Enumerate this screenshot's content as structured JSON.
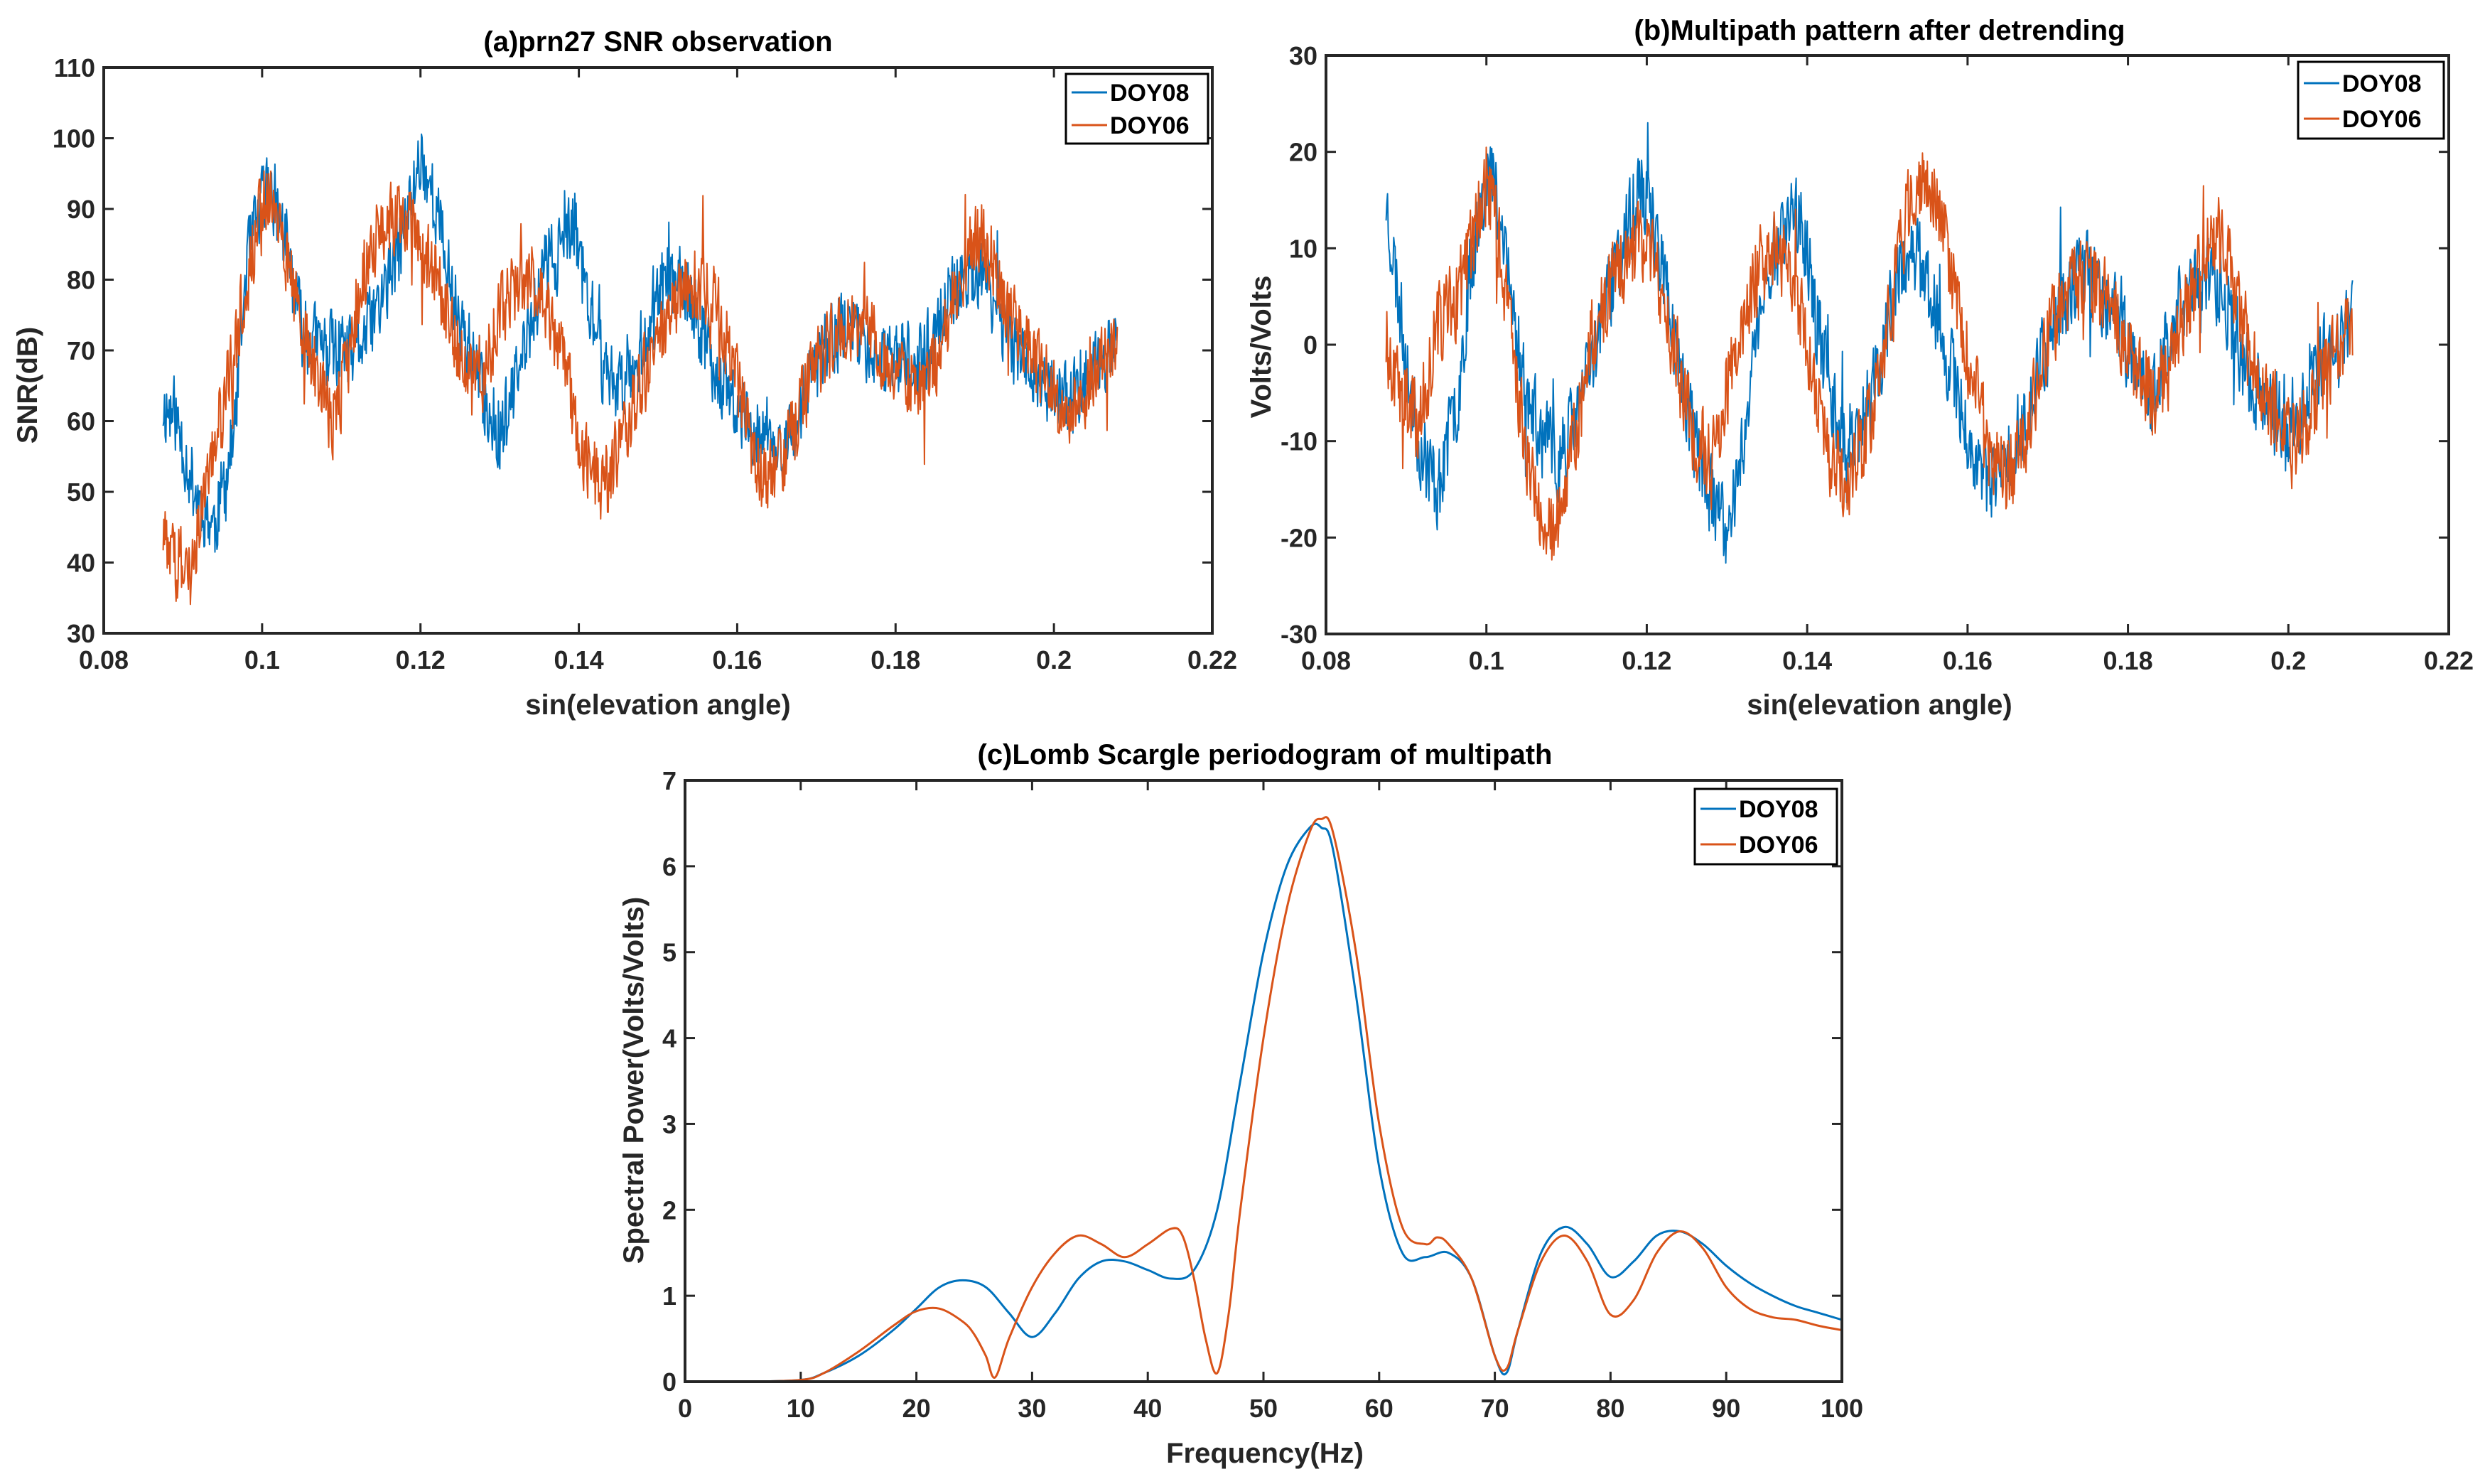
{
  "colors": {
    "DOY08": "#0072BD",
    "DOY06": "#D95319",
    "axis": "#262626"
  },
  "chart_data": [
    {
      "type": "line",
      "title": "(a)prn27 SNR observation",
      "xlabel": "sin(elevation angle)",
      "ylabel": "SNR(dB)",
      "xlim": [
        0.08,
        0.22
      ],
      "ylim": [
        30,
        110
      ],
      "xticks": [
        "0.08",
        "0.1",
        "0.12",
        "0.14",
        "0.16",
        "0.18",
        "0.2",
        "0.22"
      ],
      "yticks": [
        "30",
        "40",
        "50",
        "60",
        "70",
        "80",
        "90",
        "100",
        "110"
      ],
      "legend": [
        "DOY08",
        "DOY06"
      ],
      "legend_position": "top-right",
      "x_range_data": [
        0.0875,
        0.208
      ],
      "series": [
        {
          "name": "DOY08",
          "x": [
            0.0875,
            0.089,
            0.0915,
            0.094,
            0.0965,
            0.098,
            0.1,
            0.101,
            0.103,
            0.105,
            0.107,
            0.109,
            0.111,
            0.113,
            0.115,
            0.117,
            0.119,
            0.12,
            0.122,
            0.124,
            0.126,
            0.128,
            0.13,
            0.132,
            0.134,
            0.136,
            0.138,
            0.1395,
            0.141,
            0.143,
            0.145,
            0.147,
            0.149,
            0.151,
            0.153,
            0.155,
            0.157,
            0.159,
            0.161,
            0.163,
            0.165,
            0.167,
            0.169,
            0.171,
            0.173,
            0.175,
            0.177,
            0.179,
            0.181,
            0.183,
            0.185,
            0.187,
            0.189,
            0.191,
            0.193,
            0.195,
            0.197,
            0.199,
            0.201,
            0.203,
            0.205,
            0.207,
            0.208
          ],
          "values": [
            62,
            61,
            50,
            45,
            58,
            82,
            91,
            94,
            85,
            73,
            71,
            70,
            69,
            72,
            77,
            83,
            92,
            98,
            90,
            78,
            71,
            63,
            58,
            65,
            74,
            83,
            84,
            88,
            78,
            68,
            65,
            68,
            74,
            80,
            79,
            74,
            68,
            63,
            60,
            58,
            56,
            58,
            65,
            70,
            73,
            73,
            70,
            68,
            69,
            68,
            73,
            78,
            80,
            82,
            75,
            70,
            68,
            65,
            62,
            64,
            67,
            70,
            71
          ]
        },
        {
          "name": "DOY06",
          "x": [
            0.0875,
            0.089,
            0.0915,
            0.094,
            0.0965,
            0.098,
            0.1,
            0.101,
            0.103,
            0.105,
            0.107,
            0.109,
            0.111,
            0.113,
            0.115,
            0.117,
            0.119,
            0.12,
            0.122,
            0.124,
            0.126,
            0.128,
            0.13,
            0.132,
            0.134,
            0.136,
            0.138,
            0.1395,
            0.141,
            0.143,
            0.145,
            0.147,
            0.149,
            0.151,
            0.153,
            0.155,
            0.157,
            0.159,
            0.161,
            0.163,
            0.165,
            0.167,
            0.169,
            0.171,
            0.173,
            0.175,
            0.177,
            0.179,
            0.181,
            0.183,
            0.185,
            0.187,
            0.189,
            0.191,
            0.193,
            0.195,
            0.197,
            0.199,
            0.201,
            0.203,
            0.205,
            0.207,
            0.208
          ],
          "values": [
            44,
            40,
            42,
            56,
            70,
            80,
            90,
            93,
            84,
            73,
            66,
            60,
            70,
            82,
            88,
            89,
            88,
            86,
            80,
            73,
            67,
            67,
            75,
            79,
            80,
            76,
            69,
            60,
            54,
            51,
            56,
            62,
            68,
            73,
            78,
            80,
            77,
            70,
            60,
            52,
            52,
            58,
            65,
            70,
            73,
            74,
            72,
            68,
            66,
            65,
            68,
            76,
            83,
            87,
            80,
            74,
            70,
            66,
            62,
            62,
            66,
            70,
            71
          ]
        }
      ]
    },
    {
      "type": "line",
      "title": "(b)Multipath pattern after detrending",
      "xlabel": "sin(elevation angle)",
      "ylabel": "Volts/Volts",
      "xlim": [
        0.08,
        0.22
      ],
      "ylim": [
        -30,
        30
      ],
      "xticks": [
        "0.08",
        "0.1",
        "0.12",
        "0.14",
        "0.16",
        "0.18",
        "0.2",
        "0.22"
      ],
      "yticks": [
        "-30",
        "-20",
        "-10",
        "0",
        "10",
        "20",
        "30"
      ],
      "legend": [
        "DOY08",
        "DOY06"
      ],
      "legend_position": "top-right",
      "x_range_data": [
        0.0875,
        0.208
      ],
      "series": [
        {
          "name": "DOY08",
          "x": [
            0.0875,
            0.089,
            0.0915,
            0.094,
            0.0965,
            0.098,
            0.1,
            0.101,
            0.103,
            0.105,
            0.107,
            0.109,
            0.111,
            0.113,
            0.115,
            0.117,
            0.119,
            0.12,
            0.122,
            0.124,
            0.126,
            0.128,
            0.13,
            0.132,
            0.134,
            0.136,
            0.138,
            0.1395,
            0.141,
            0.143,
            0.145,
            0.147,
            0.149,
            0.151,
            0.153,
            0.155,
            0.157,
            0.159,
            0.161,
            0.163,
            0.165,
            0.167,
            0.169,
            0.171,
            0.173,
            0.175,
            0.177,
            0.179,
            0.181,
            0.183,
            0.185,
            0.187,
            0.189,
            0.191,
            0.193,
            0.195,
            0.197,
            0.199,
            0.201,
            0.203,
            0.205,
            0.207,
            0.208
          ],
          "values": [
            15,
            5,
            -10,
            -15,
            -5,
            8,
            18,
            17,
            5,
            -5,
            -10,
            -12,
            -8,
            -2,
            5,
            10,
            16,
            15,
            8,
            -2,
            -10,
            -16,
            -20,
            -10,
            3,
            10,
            14,
            12,
            3,
            -5,
            -10,
            -8,
            -2,
            6,
            10,
            7,
            0,
            -6,
            -12,
            -15,
            -12,
            -8,
            -2,
            3,
            6,
            8,
            5,
            2,
            -3,
            -5,
            0,
            5,
            8,
            6,
            2,
            -3,
            -6,
            -8,
            -8,
            -4,
            0,
            2,
            3
          ]
        },
        {
          "name": "DOY06",
          "x": [
            0.0875,
            0.089,
            0.0915,
            0.094,
            0.0965,
            0.098,
            0.1,
            0.101,
            0.103,
            0.105,
            0.107,
            0.109,
            0.111,
            0.113,
            0.115,
            0.117,
            0.119,
            0.12,
            0.122,
            0.124,
            0.126,
            0.128,
            0.13,
            0.132,
            0.134,
            0.136,
            0.138,
            0.1395,
            0.141,
            0.143,
            0.145,
            0.147,
            0.149,
            0.151,
            0.153,
            0.155,
            0.157,
            0.159,
            0.161,
            0.163,
            0.165,
            0.167,
            0.169,
            0.171,
            0.173,
            0.175,
            0.177,
            0.179,
            0.181,
            0.183,
            0.185,
            0.187,
            0.189,
            0.191,
            0.193,
            0.195,
            0.197,
            0.199,
            0.201,
            0.203,
            0.205,
            0.207,
            0.208
          ],
          "values": [
            0,
            -5,
            -8,
            2,
            5,
            10,
            16,
            14,
            2,
            -12,
            -20,
            -18,
            -10,
            0,
            5,
            8,
            12,
            10,
            5,
            -3,
            -10,
            -12,
            -5,
            3,
            8,
            10,
            8,
            2,
            -5,
            -12,
            -14,
            -10,
            -3,
            8,
            15,
            18,
            12,
            3,
            -5,
            -12,
            -14,
            -10,
            -3,
            3,
            6,
            7,
            5,
            2,
            -2,
            -5,
            -3,
            3,
            8,
            12,
            7,
            0,
            -5,
            -8,
            -10,
            -6,
            -2,
            1,
            2
          ]
        }
      ]
    },
    {
      "type": "line",
      "title": "(c)Lomb Scargle periodogram of multipath",
      "xlabel": "Frequency(Hz)",
      "ylabel": "Spectral Power(Volts/Volts)",
      "xlim": [
        0,
        100
      ],
      "ylim": [
        0,
        7
      ],
      "xticks": [
        "0",
        "10",
        "20",
        "30",
        "40",
        "50",
        "60",
        "70",
        "80",
        "90",
        "100"
      ],
      "yticks": [
        "0",
        "1",
        "2",
        "3",
        "4",
        "5",
        "6",
        "7"
      ],
      "legend": [
        "DOY08",
        "DOY06"
      ],
      "legend_position": "top-right",
      "series": [
        {
          "name": "DOY08",
          "x": [
            0,
            5,
            10,
            12,
            15,
            18,
            20,
            22,
            24,
            26,
            28,
            30,
            32,
            34,
            36,
            38,
            40,
            42,
            44,
            46,
            48,
            50,
            52,
            54,
            55,
            56,
            58,
            60,
            62,
            64,
            66,
            68,
            70,
            71,
            72,
            74,
            76,
            78,
            80,
            82,
            84,
            86,
            88,
            90,
            92,
            94,
            96,
            98,
            100
          ],
          "values": [
            0,
            0,
            0.02,
            0.1,
            0.3,
            0.6,
            0.85,
            1.1,
            1.18,
            1.1,
            0.8,
            0.52,
            0.8,
            1.2,
            1.4,
            1.4,
            1.3,
            1.2,
            1.3,
            2,
            3.5,
            5,
            6,
            6.45,
            6.45,
            6.2,
            4.5,
            2.5,
            1.5,
            1.45,
            1.5,
            1.2,
            0.3,
            0.1,
            0.6,
            1.5,
            1.8,
            1.6,
            1.22,
            1.4,
            1.7,
            1.75,
            1.6,
            1.35,
            1.15,
            1,
            0.88,
            0.8,
            0.72
          ]
        },
        {
          "name": "DOY06",
          "x": [
            0,
            5,
            10,
            12,
            15,
            18,
            20,
            22,
            24,
            25,
            26,
            26.8,
            28,
            30,
            32,
            34,
            36,
            38,
            40,
            42,
            43,
            44,
            45,
            46,
            47,
            48,
            50,
            52,
            54,
            55,
            56,
            58,
            60,
            62,
            64,
            65,
            66,
            68,
            70,
            71,
            72,
            74,
            76,
            78,
            80,
            82,
            84,
            86,
            88,
            90,
            92,
            94,
            96,
            98,
            100
          ],
          "values": [
            0,
            0,
            0.02,
            0.1,
            0.35,
            0.65,
            0.82,
            0.85,
            0.7,
            0.55,
            0.3,
            0.05,
            0.5,
            1.1,
            1.5,
            1.7,
            1.6,
            1.45,
            1.6,
            1.78,
            1.7,
            1.2,
            0.5,
            0.1,
            0.8,
            2,
            4,
            5.5,
            6.4,
            6.55,
            6.4,
            5,
            3,
            1.8,
            1.6,
            1.68,
            1.6,
            1.2,
            0.3,
            0.15,
            0.6,
            1.4,
            1.7,
            1.4,
            0.78,
            0.95,
            1.5,
            1.75,
            1.55,
            1.1,
            0.85,
            0.75,
            0.72,
            0.65,
            0.6
          ]
        }
      ]
    }
  ]
}
